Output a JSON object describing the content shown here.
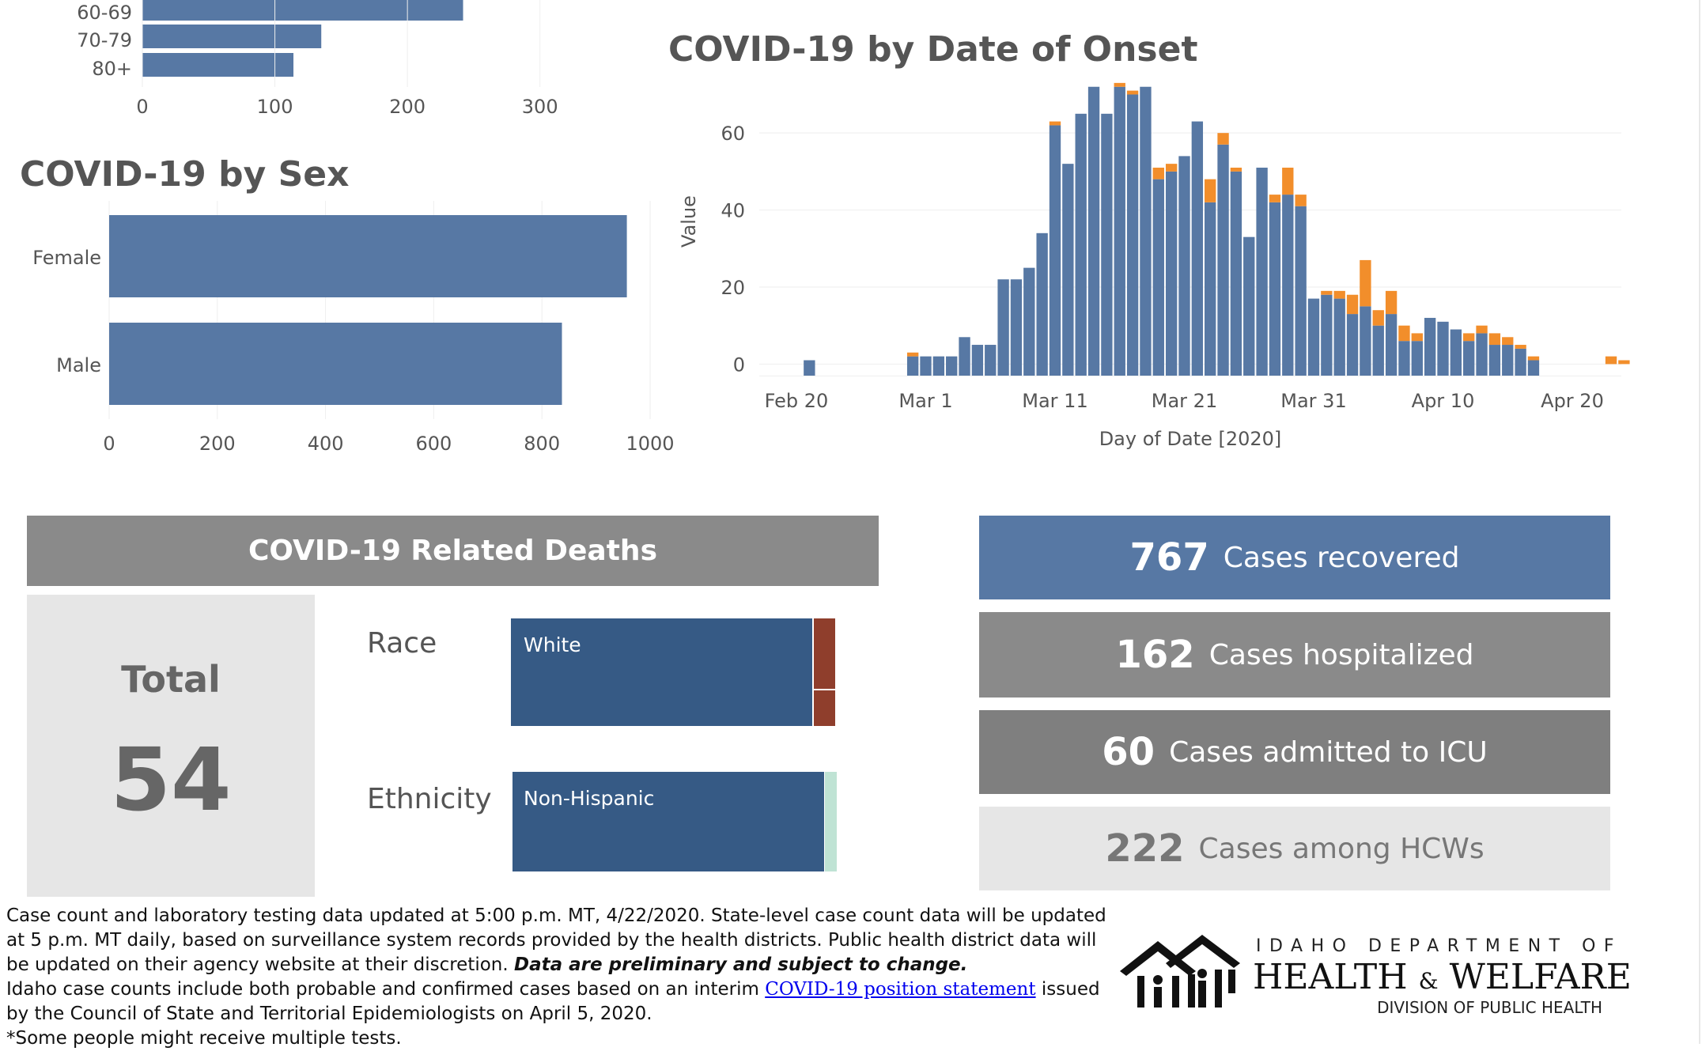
{
  "age_chart": {
    "title": "",
    "categories": [
      "60-69",
      "70-79",
      "80+"
    ],
    "values": [
      242,
      135,
      114
    ],
    "xticks": [
      "0",
      "100",
      "200",
      "300"
    ],
    "xlim": [
      0,
      370
    ],
    "color": "#5778a4"
  },
  "sex_chart": {
    "title": "COVID-19 by Sex",
    "categories": [
      "Female",
      "Male"
    ],
    "values": [
      957,
      837
    ],
    "xticks": [
      "0",
      "200",
      "400",
      "600",
      "800",
      "1000"
    ],
    "xlim": [
      0,
      1000
    ],
    "color": "#5778a4"
  },
  "chart_data": {
    "type": "bar",
    "title": "COVID-19 by Date of Onset",
    "xlabel": "Day of Date [2020]",
    "ylabel": "Value",
    "ylim": [
      -3,
      74
    ],
    "yticks": [
      0,
      20,
      40,
      60
    ],
    "xtick_labels": [
      {
        "label": "Feb 20",
        "x": "2020-02-20"
      },
      {
        "label": "Mar 1",
        "x": "2020-03-01"
      },
      {
        "label": "Mar 11",
        "x": "2020-03-11"
      },
      {
        "label": "Mar 21",
        "x": "2020-03-21"
      },
      {
        "label": "Mar 31",
        "x": "2020-03-31"
      },
      {
        "label": "Apr 10",
        "x": "2020-04-10"
      },
      {
        "label": "Apr 20",
        "x": "2020-04-20"
      }
    ],
    "x": [
      "2020-02-21",
      "2020-02-22",
      "2020-02-23",
      "2020-02-24",
      "2020-02-25",
      "2020-02-26",
      "2020-02-27",
      "2020-02-28",
      "2020-02-29",
      "2020-03-01",
      "2020-03-02",
      "2020-03-03",
      "2020-03-04",
      "2020-03-05",
      "2020-03-06",
      "2020-03-07",
      "2020-03-08",
      "2020-03-09",
      "2020-03-10",
      "2020-03-11",
      "2020-03-12",
      "2020-03-13",
      "2020-03-14",
      "2020-03-15",
      "2020-03-16",
      "2020-03-17",
      "2020-03-18",
      "2020-03-19",
      "2020-03-20",
      "2020-03-21",
      "2020-03-22",
      "2020-03-23",
      "2020-03-24",
      "2020-03-25",
      "2020-03-26",
      "2020-03-27",
      "2020-03-28",
      "2020-03-29",
      "2020-03-30",
      "2020-03-31",
      "2020-04-01",
      "2020-04-02",
      "2020-04-03",
      "2020-04-04",
      "2020-04-05",
      "2020-04-06",
      "2020-04-07",
      "2020-04-08",
      "2020-04-09",
      "2020-04-10",
      "2020-04-11",
      "2020-04-12",
      "2020-04-13",
      "2020-04-14",
      "2020-04-15",
      "2020-04-16",
      "2020-04-17",
      "2020-04-18",
      "2020-04-19",
      "2020-04-20",
      "2020-04-21",
      "2020-04-22",
      "2020-04-23",
      "2020-04-24"
    ],
    "series": [
      {
        "color": "#5778a4",
        "values": [
          1,
          0,
          0,
          0,
          0,
          0,
          0,
          0,
          2,
          2,
          2,
          2,
          7,
          5,
          5,
          22,
          22,
          25,
          34,
          62,
          52,
          65,
          72,
          65,
          72,
          70,
          72,
          48,
          50,
          54,
          63,
          42,
          57,
          50,
          33,
          51,
          42,
          44,
          41,
          17,
          18,
          17,
          13,
          15,
          10,
          13,
          6,
          6,
          12,
          11,
          9,
          6,
          8,
          5,
          5,
          4,
          1,
          0,
          0,
          0,
          0,
          0,
          0,
          0
        ],
        "extra": [
          0,
          0,
          0,
          0,
          0,
          0,
          0,
          0,
          1,
          0,
          0,
          0,
          0,
          0,
          0,
          0,
          0,
          0,
          0,
          1,
          0,
          0,
          0,
          0,
          1,
          1,
          0,
          3,
          2,
          0,
          0,
          6,
          3,
          1,
          0,
          0,
          2,
          7,
          3,
          0,
          1,
          2,
          5,
          12,
          4,
          6,
          4,
          2,
          0,
          0,
          0,
          2,
          2,
          3,
          2,
          1,
          1,
          0,
          0,
          0,
          0,
          0,
          2,
          1
        ]
      }
    ]
  },
  "deaths": {
    "header": "COVID-19 Related Deaths",
    "total_label": "Total",
    "total_value": "54",
    "race_label": "Race",
    "race_main": "White",
    "race_main_fraction": 0.93,
    "race_main_color": "#365a85",
    "race_other_color": "#8f3e2c",
    "ethnicity_label": "Ethnicity",
    "ethnicity_main": "Non-Hispanic",
    "ethnicity_main_fraction": 0.96,
    "ethnicity_other_color": "#bfe3d4"
  },
  "stats": [
    {
      "number": "767",
      "text": "Cases recovered",
      "bg": "#5778a4",
      "fg": "#ffffff"
    },
    {
      "number": "162",
      "text": "Cases hospitalized",
      "bg": "#8a8a8a",
      "fg": "#ffffff"
    },
    {
      "number": "60",
      "text": "Cases admitted to ICU",
      "bg": "#7f7f7f",
      "fg": "#ffffff"
    },
    {
      "number": "222",
      "text": "Cases among HCWs",
      "bg": "#e6e6e6",
      "fg": "#777777"
    }
  ],
  "footer": {
    "p1a": "Case count and laboratory testing data updated at 5:00 p.m. MT, 4/22/2020. State-level case count data will be updated at 5 p.m. MT daily, based on surveillance system records provided by the health districts. Public health district data will be updated on their agency website at their discretion. ",
    "p1b": "Data are preliminary and subject to change.",
    "p2a": "Idaho case counts include both probable and confirmed cases based on an interim ",
    "p2link": "COVID-19 position statement",
    "p2b": " issued by the Council of State and Territorial Epidemiologists on April 5, 2020.",
    "p3": "*Some people might receive multiple tests."
  },
  "logo": {
    "line1": "IDAHO DEPARTMENT OF",
    "line2a": "HEALTH",
    "amp": "&",
    "line2b": "WELFARE",
    "line3": "DIVISION OF PUBLIC HEALTH"
  }
}
